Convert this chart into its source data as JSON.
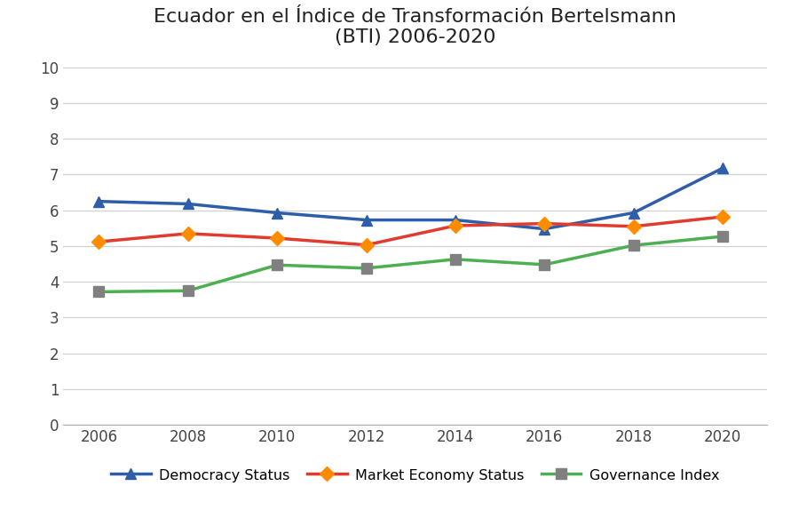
{
  "title": "Ecuador en el Índice de Transformación Bertelsmann\n(BTI) 2006-2020",
  "years": [
    2006,
    2008,
    2010,
    2012,
    2014,
    2016,
    2018,
    2020
  ],
  "democracy_status": [
    6.25,
    6.18,
    5.93,
    5.73,
    5.73,
    5.48,
    5.93,
    7.18
  ],
  "market_economy_status": [
    5.12,
    5.35,
    5.22,
    5.03,
    5.57,
    5.63,
    5.55,
    5.82
  ],
  "governance_index": [
    3.72,
    3.75,
    4.47,
    4.38,
    4.63,
    4.48,
    5.02,
    5.27
  ],
  "democracy_color": "#2E5EAA",
  "market_color": "#E03B2E",
  "governance_color": "#4CAF50",
  "ylim": [
    0,
    10
  ],
  "yticks": [
    0,
    1,
    2,
    3,
    4,
    5,
    6,
    7,
    8,
    9,
    10
  ],
  "legend_labels": [
    "Democracy Status",
    "Market Economy Status",
    "Governance Index"
  ],
  "background_color": "#ffffff",
  "grid_color": "#d0d0d0",
  "title_fontsize": 16,
  "tick_fontsize": 12
}
